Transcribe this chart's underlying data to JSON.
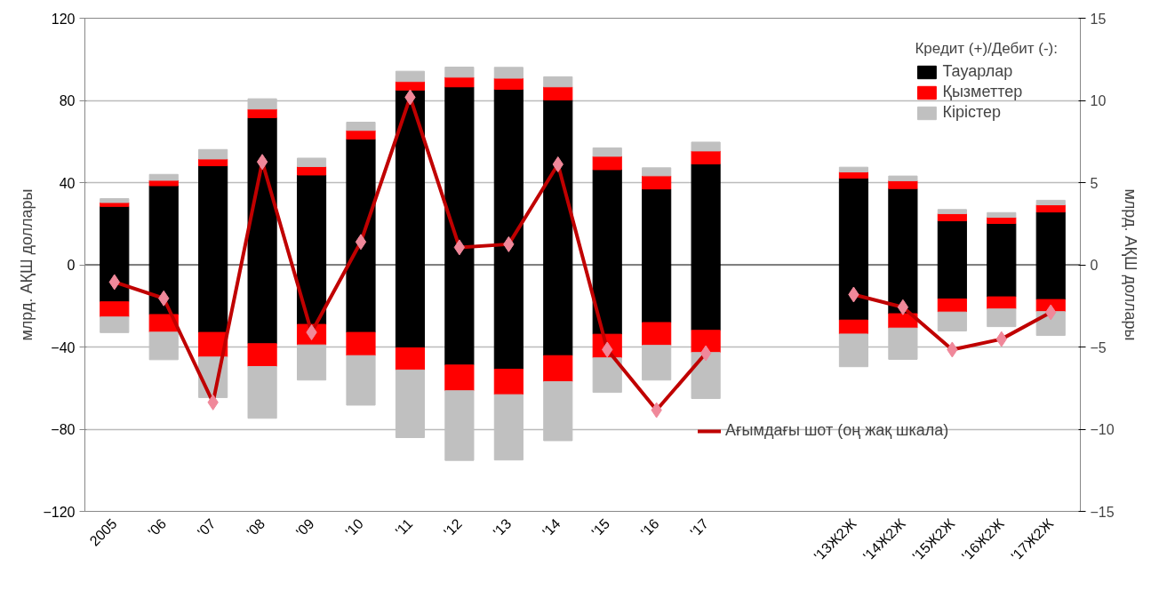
{
  "chart_data": {
    "type": "bar",
    "stacked": true,
    "ylabel": "млрд. АҚШ доллары",
    "y2label": "млрд. АҚШ доллары",
    "legend_title": "Кредит (+)/Дебит (-):",
    "categories": [
      "2005",
      "'06",
      "'07",
      "'08",
      "'09",
      "'10",
      "'11",
      "'12",
      "'13",
      "'14",
      "'15",
      "'16",
      "'17",
      null,
      null,
      "'13Ж2Ж",
      "'14Ж2Ж",
      "'15Ж2Ж",
      "'16Ж2Ж",
      "'17Ж2Ж"
    ],
    "series": [
      {
        "name": "Тауарлар",
        "color": "#000000",
        "values": [
          28.4,
          38.5,
          48.2,
          71.6,
          43.7,
          61.2,
          85.0,
          86.6,
          85.4,
          80.2,
          46.3,
          36.9,
          49.1,
          null,
          null,
          42.2,
          37.1,
          21.4,
          20.1,
          25.7
        ]
      },
      {
        "name": "Қызметтер",
        "color": "#ff0000",
        "values": [
          1.9,
          2.6,
          3.3,
          4.2,
          4.1,
          4.2,
          4.2,
          4.7,
          5.4,
          6.4,
          6.5,
          6.4,
          6.3,
          null,
          null,
          3.0,
          3.8,
          3.5,
          3.0,
          3.5
        ]
      },
      {
        "name": "Кірістер",
        "color": "#c0c0c0",
        "values": [
          1.9,
          2.9,
          4.6,
          5.0,
          4.1,
          4.0,
          5.0,
          4.9,
          5.3,
          4.9,
          4.1,
          3.9,
          4.3,
          null,
          null,
          2.3,
          2.3,
          2.0,
          2.3,
          2.2
        ]
      },
      {
        "color": "#000000",
        "values": [
          -18.0,
          -24.2,
          -32.9,
          -38.4,
          -29.0,
          -32.9,
          -40.4,
          -48.8,
          -50.8,
          -44.2,
          -33.8,
          -28.1,
          -31.9,
          null,
          null,
          -26.9,
          -23.8,
          -16.6,
          -15.6,
          -16.9
        ]
      },
      {
        "color": "#ff0000",
        "values": [
          -7.4,
          -8.6,
          -12.0,
          -11.1,
          -10.0,
          -11.3,
          -10.8,
          -12.5,
          -12.4,
          -12.7,
          -11.5,
          -11.1,
          -10.8,
          null,
          null,
          -6.8,
          -7.0,
          -6.4,
          -5.9,
          -5.9
        ]
      },
      {
        "color": "#c0c0c0",
        "values": [
          -7.6,
          -13.4,
          -19.7,
          -25.2,
          -17.1,
          -24.1,
          -32.9,
          -33.9,
          -31.8,
          -28.7,
          -16.8,
          -16.9,
          -22.4,
          null,
          null,
          -15.9,
          -15.2,
          -9.2,
          -8.6,
          -11.6
        ]
      },
      {
        "name": "Ағымдағы шот (оң жақ шкала)",
        "type": "line",
        "axis": "y2",
        "color": "#c00000",
        "marker": "diamond",
        "values": [
          -1.05,
          -2.04,
          -8.37,
          6.26,
          -4.11,
          1.39,
          10.19,
          1.06,
          1.25,
          6.11,
          -5.16,
          -8.84,
          -5.38,
          null,
          null,
          -1.81,
          -2.58,
          -5.16,
          -4.52,
          -2.89
        ]
      }
    ],
    "ylim": [
      -120,
      120
    ],
    "yticks": [
      -120,
      -80,
      -40,
      0,
      40,
      80,
      120
    ],
    "y2lim": [
      -15,
      15
    ],
    "y2ticks": [
      -15,
      -10,
      -5,
      0,
      5,
      10,
      15
    ],
    "grid": "y",
    "legend": "top right"
  }
}
